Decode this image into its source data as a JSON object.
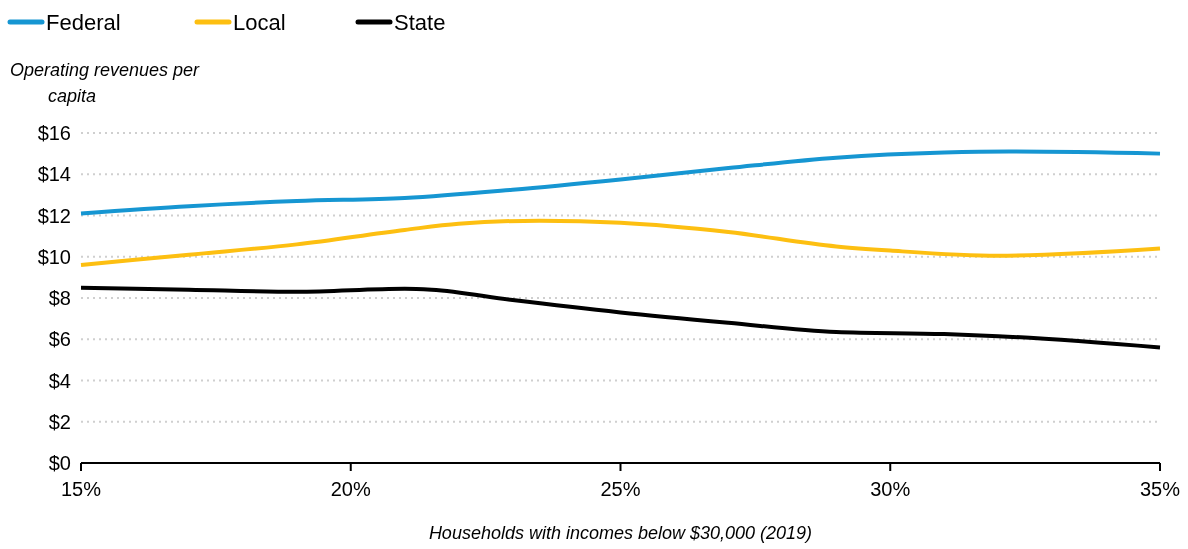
{
  "chart_data": {
    "type": "line",
    "xlabel": "Households with incomes below $30,000 (2019)",
    "ylabel": "Operating revenues per capita",
    "xlim": [
      15,
      35
    ],
    "xticks": [
      {
        "value": 15,
        "label": "15%"
      },
      {
        "value": 20,
        "label": "20%"
      },
      {
        "value": 25,
        "label": "25%"
      },
      {
        "value": 30,
        "label": "30%"
      },
      {
        "value": 35,
        "label": "35%"
      }
    ],
    "ylim": [
      0,
      16
    ],
    "yticks": [
      {
        "value": 0,
        "label": "$0"
      },
      {
        "value": 2,
        "label": "$2"
      },
      {
        "value": 4,
        "label": "$4"
      },
      {
        "value": 6,
        "label": "$6"
      },
      {
        "value": 8,
        "label": "$8"
      },
      {
        "value": 10,
        "label": "$10"
      },
      {
        "value": 12,
        "label": "$12"
      },
      {
        "value": 14,
        "label": "$14"
      },
      {
        "value": 16,
        "label": "$16"
      }
    ],
    "grid": "y",
    "legend": "top left",
    "line_style": "solid",
    "marker": "none",
    "series": [
      {
        "name": "Federal",
        "color": "#1696d2",
        "x": [
          15,
          17,
          19,
          21,
          23,
          25,
          27,
          29,
          31,
          32.2,
          35
        ],
        "values": [
          12.1,
          12.45,
          12.7,
          12.85,
          13.25,
          13.75,
          14.3,
          14.8,
          15.05,
          15.1,
          15.0
        ]
      },
      {
        "name": "Local",
        "color": "#fdbf11",
        "x": [
          15,
          17,
          19,
          21,
          22,
          23.5,
          25,
          27,
          29,
          30,
          32,
          35
        ],
        "values": [
          9.6,
          10.1,
          10.6,
          11.3,
          11.6,
          11.75,
          11.65,
          11.2,
          10.5,
          10.3,
          10.05,
          10.4
        ]
      },
      {
        "name": "State",
        "color": "#000000",
        "x": [
          15,
          17,
          19,
          21,
          21.5,
          23,
          25,
          27,
          29,
          31,
          32,
          35
        ],
        "values": [
          8.5,
          8.4,
          8.3,
          8.45,
          8.4,
          7.9,
          7.3,
          6.8,
          6.35,
          6.25,
          6.15,
          5.6
        ]
      }
    ]
  }
}
